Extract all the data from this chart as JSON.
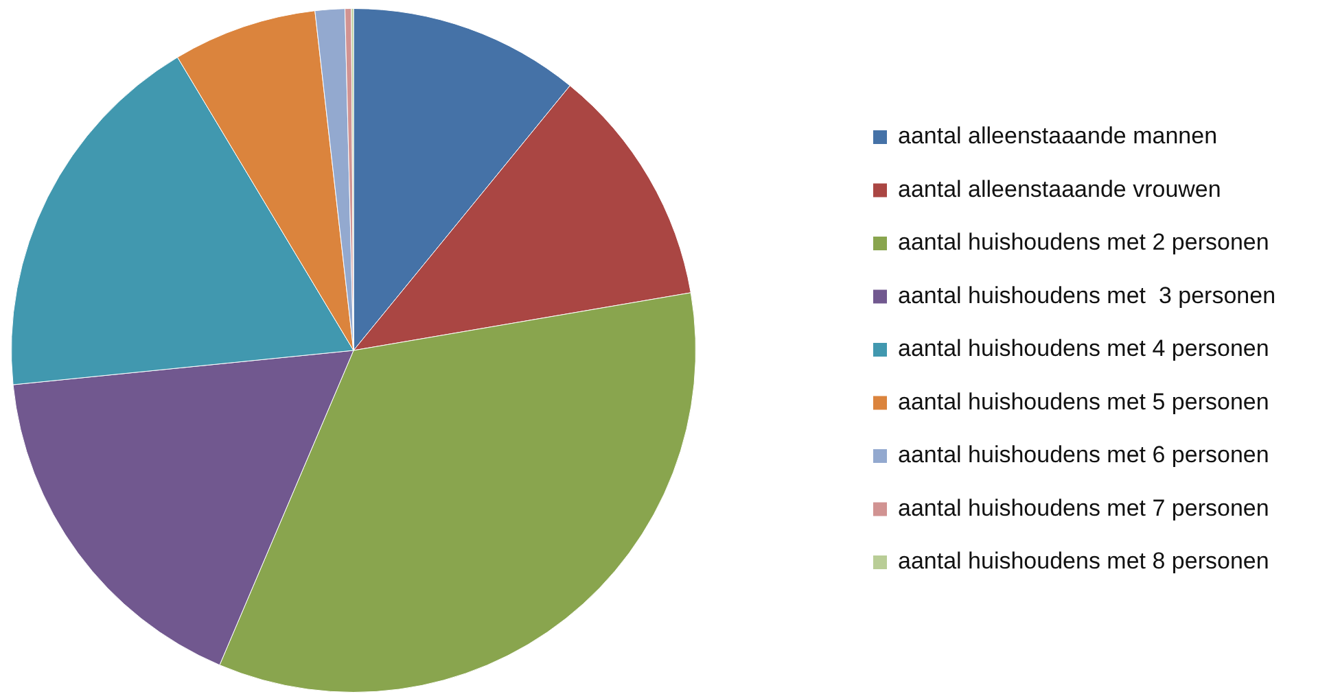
{
  "chart_data": {
    "type": "pie",
    "categories": [
      "aantal alleenstaaande mannen",
      "aantal alleenstaaande vrouwen",
      "aantal huishoudens met 2 personen",
      "aantal huishoudens met  3 personen",
      "aantal huishoudens met 4 personen",
      "aantal huishoudens met 5 personen",
      "aantal huishoudens met 6 personen",
      "aantal huishoudens met 7 personen",
      "aantal huishoudens met 8 personen"
    ],
    "values": [
      10.9,
      11.4,
      34.1,
      17.0,
      18.0,
      6.8,
      1.4,
      0.3,
      0.1
    ],
    "colors": [
      "#4572a7",
      "#aa4643",
      "#89a54e",
      "#71588f",
      "#4198af",
      "#db843d",
      "#93a9cf",
      "#d19392",
      "#b9cd96"
    ],
    "legend": "right"
  }
}
